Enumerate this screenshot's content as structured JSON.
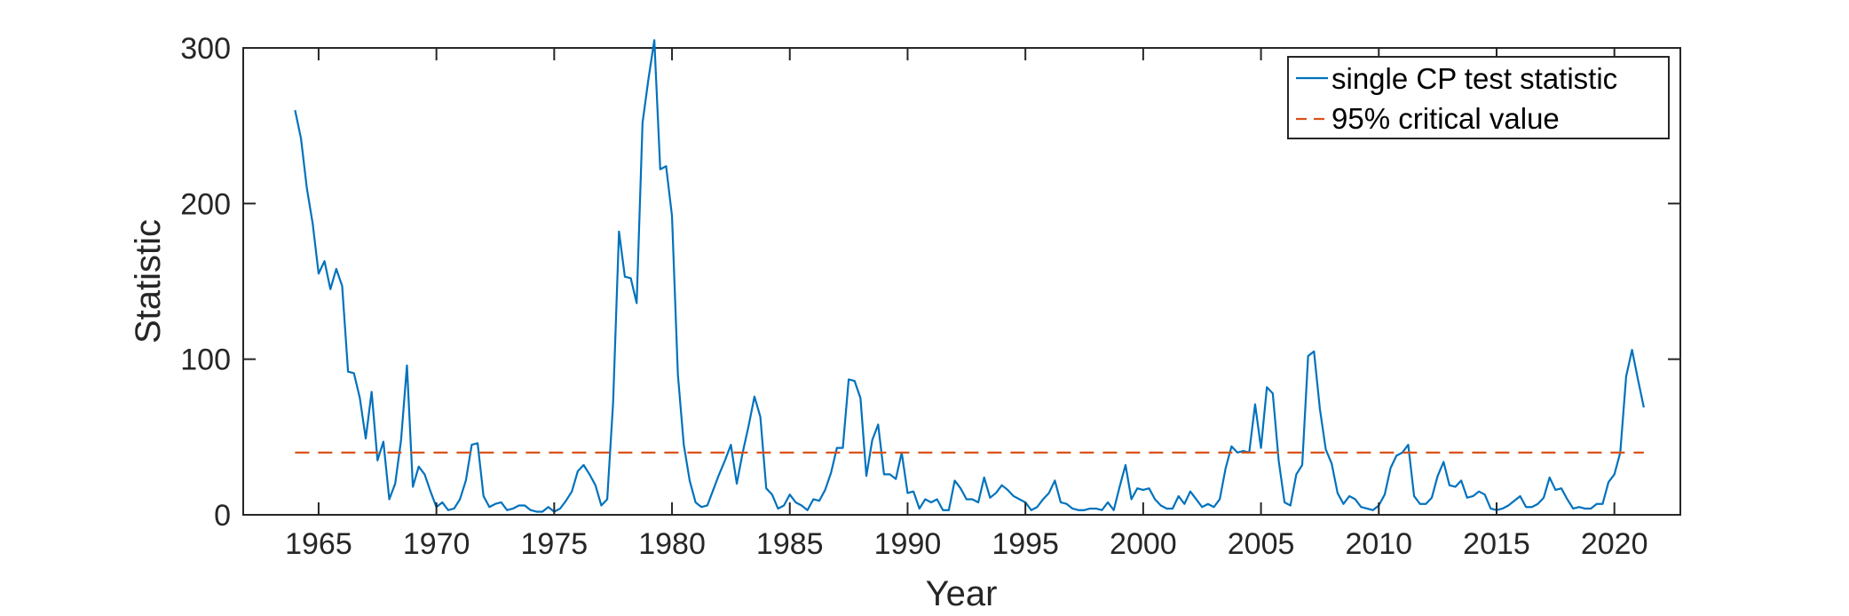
{
  "colors": {
    "series_line": "#0072BD",
    "critical_line": "#D95319",
    "axis": "#262626"
  },
  "chart_data": {
    "type": "line",
    "title": "",
    "xlabel": "Year",
    "ylabel": "Statistic",
    "xlim": [
      1961.8,
      2022.8
    ],
    "ylim": [
      0,
      300
    ],
    "x_ticks": [
      1965,
      1970,
      1975,
      1980,
      1985,
      1990,
      1995,
      2000,
      2005,
      2010,
      2015,
      2020
    ],
    "x_tick_labels": [
      "1965",
      "1970",
      "1975",
      "1980",
      "1985",
      "1990",
      "1995",
      "2000",
      "2005",
      "2010",
      "2015",
      "2020"
    ],
    "y_ticks": [
      0,
      100,
      200,
      300
    ],
    "y_tick_labels": [
      "0",
      "100",
      "200",
      "300"
    ],
    "grid": false,
    "legend_position": "top-right",
    "series": [
      {
        "name": "single CP test statistic",
        "style": "solid",
        "points": [
          [
            1964.0,
            260
          ],
          [
            1964.25,
            242
          ],
          [
            1964.5,
            210
          ],
          [
            1964.75,
            187
          ],
          [
            1965.0,
            155
          ],
          [
            1965.25,
            163
          ],
          [
            1965.5,
            145
          ],
          [
            1965.75,
            158
          ],
          [
            1966.0,
            147
          ],
          [
            1966.25,
            92
          ],
          [
            1966.5,
            91
          ],
          [
            1966.75,
            75
          ],
          [
            1967.0,
            49
          ],
          [
            1967.25,
            79
          ],
          [
            1967.5,
            35
          ],
          [
            1967.75,
            47
          ],
          [
            1968.0,
            10
          ],
          [
            1968.25,
            20
          ],
          [
            1968.5,
            48
          ],
          [
            1968.75,
            96
          ],
          [
            1969.0,
            18
          ],
          [
            1969.25,
            31
          ],
          [
            1969.5,
            26
          ],
          [
            1969.75,
            15
          ],
          [
            1970.0,
            5
          ],
          [
            1970.25,
            8
          ],
          [
            1970.5,
            3
          ],
          [
            1970.75,
            4
          ],
          [
            1971.0,
            10
          ],
          [
            1971.25,
            22
          ],
          [
            1971.5,
            45
          ],
          [
            1971.75,
            46
          ],
          [
            1972.0,
            12
          ],
          [
            1972.25,
            5
          ],
          [
            1972.5,
            7
          ],
          [
            1972.75,
            8
          ],
          [
            1973.0,
            3
          ],
          [
            1973.25,
            4
          ],
          [
            1973.5,
            6
          ],
          [
            1973.75,
            6
          ],
          [
            1974.0,
            3
          ],
          [
            1974.25,
            2
          ],
          [
            1974.5,
            2
          ],
          [
            1974.75,
            5
          ],
          [
            1975.0,
            2
          ],
          [
            1975.25,
            4
          ],
          [
            1975.5,
            9
          ],
          [
            1975.75,
            15
          ],
          [
            1976.0,
            28
          ],
          [
            1976.25,
            32
          ],
          [
            1976.5,
            26
          ],
          [
            1976.75,
            19
          ],
          [
            1977.0,
            6
          ],
          [
            1977.25,
            10
          ],
          [
            1977.5,
            72
          ],
          [
            1977.75,
            182
          ],
          [
            1978.0,
            153
          ],
          [
            1978.25,
            152
          ],
          [
            1978.5,
            136
          ],
          [
            1978.75,
            252
          ],
          [
            1979.0,
            280
          ],
          [
            1979.25,
            305
          ],
          [
            1979.5,
            222
          ],
          [
            1979.75,
            224
          ],
          [
            1980.0,
            192
          ],
          [
            1980.25,
            90
          ],
          [
            1980.5,
            45
          ],
          [
            1980.75,
            22
          ],
          [
            1981.0,
            8
          ],
          [
            1981.25,
            5
          ],
          [
            1981.5,
            6
          ],
          [
            1981.75,
            16
          ],
          [
            1982.0,
            26
          ],
          [
            1982.25,
            35
          ],
          [
            1982.5,
            45
          ],
          [
            1982.75,
            20
          ],
          [
            1983.0,
            40
          ],
          [
            1983.25,
            57
          ],
          [
            1983.5,
            76
          ],
          [
            1983.75,
            63
          ],
          [
            1984.0,
            17
          ],
          [
            1984.25,
            13
          ],
          [
            1984.5,
            4
          ],
          [
            1984.75,
            6
          ],
          [
            1985.0,
            13
          ],
          [
            1985.25,
            8
          ],
          [
            1985.5,
            6
          ],
          [
            1985.75,
            3
          ],
          [
            1986.0,
            10
          ],
          [
            1986.25,
            9
          ],
          [
            1986.5,
            16
          ],
          [
            1986.75,
            27
          ],
          [
            1987.0,
            43
          ],
          [
            1987.25,
            43
          ],
          [
            1987.5,
            87
          ],
          [
            1987.75,
            86
          ],
          [
            1988.0,
            75
          ],
          [
            1988.25,
            25
          ],
          [
            1988.5,
            48
          ],
          [
            1988.75,
            58
          ],
          [
            1989.0,
            26
          ],
          [
            1989.25,
            26
          ],
          [
            1989.5,
            23
          ],
          [
            1989.75,
            40
          ],
          [
            1990.0,
            14
          ],
          [
            1990.25,
            15
          ],
          [
            1990.5,
            4
          ],
          [
            1990.75,
            10
          ],
          [
            1991.0,
            8
          ],
          [
            1991.25,
            10
          ],
          [
            1991.5,
            3
          ],
          [
            1991.75,
            3
          ],
          [
            1992.0,
            22
          ],
          [
            1992.25,
            17
          ],
          [
            1992.5,
            10
          ],
          [
            1992.75,
            10
          ],
          [
            1993.0,
            8
          ],
          [
            1993.25,
            24
          ],
          [
            1993.5,
            11
          ],
          [
            1993.75,
            14
          ],
          [
            1994.0,
            19
          ],
          [
            1994.25,
            16
          ],
          [
            1994.5,
            12
          ],
          [
            1994.75,
            10
          ],
          [
            1995.0,
            8
          ],
          [
            1995.25,
            3
          ],
          [
            1995.5,
            5
          ],
          [
            1995.75,
            10
          ],
          [
            1996.0,
            14
          ],
          [
            1996.25,
            22
          ],
          [
            1996.5,
            8
          ],
          [
            1996.75,
            7
          ],
          [
            1997.0,
            4
          ],
          [
            1997.25,
            3
          ],
          [
            1997.5,
            3
          ],
          [
            1997.75,
            4
          ],
          [
            1998.0,
            4
          ],
          [
            1998.25,
            3
          ],
          [
            1998.5,
            8
          ],
          [
            1998.75,
            3
          ],
          [
            1999.0,
            18
          ],
          [
            1999.25,
            32
          ],
          [
            1999.5,
            10
          ],
          [
            1999.75,
            17
          ],
          [
            2000.0,
            16
          ],
          [
            2000.25,
            17
          ],
          [
            2000.5,
            10
          ],
          [
            2000.75,
            6
          ],
          [
            2001.0,
            4
          ],
          [
            2001.25,
            4
          ],
          [
            2001.5,
            12
          ],
          [
            2001.75,
            7
          ],
          [
            2002.0,
            15
          ],
          [
            2002.25,
            10
          ],
          [
            2002.5,
            5
          ],
          [
            2002.75,
            7
          ],
          [
            2003.0,
            5
          ],
          [
            2003.25,
            10
          ],
          [
            2003.5,
            30
          ],
          [
            2003.75,
            44
          ],
          [
            2004.0,
            40
          ],
          [
            2004.25,
            41
          ],
          [
            2004.5,
            40
          ],
          [
            2004.75,
            71
          ],
          [
            2005.0,
            43
          ],
          [
            2005.25,
            82
          ],
          [
            2005.5,
            78
          ],
          [
            2005.75,
            35
          ],
          [
            2006.0,
            8
          ],
          [
            2006.25,
            6
          ],
          [
            2006.5,
            26
          ],
          [
            2006.75,
            32
          ],
          [
            2007.0,
            102
          ],
          [
            2007.25,
            105
          ],
          [
            2007.5,
            68
          ],
          [
            2007.75,
            42
          ],
          [
            2008.0,
            33
          ],
          [
            2008.25,
            14
          ],
          [
            2008.5,
            7
          ],
          [
            2008.75,
            12
          ],
          [
            2009.0,
            10
          ],
          [
            2009.25,
            5
          ],
          [
            2009.5,
            4
          ],
          [
            2009.75,
            3
          ],
          [
            2010.0,
            6
          ],
          [
            2010.25,
            13
          ],
          [
            2010.5,
            30
          ],
          [
            2010.75,
            38
          ],
          [
            2011.0,
            40
          ],
          [
            2011.25,
            45
          ],
          [
            2011.5,
            12
          ],
          [
            2011.75,
            7
          ],
          [
            2012.0,
            7
          ],
          [
            2012.25,
            11
          ],
          [
            2012.5,
            25
          ],
          [
            2012.75,
            34
          ],
          [
            2013.0,
            19
          ],
          [
            2013.25,
            18
          ],
          [
            2013.5,
            22
          ],
          [
            2013.75,
            11
          ],
          [
            2014.0,
            12
          ],
          [
            2014.25,
            15
          ],
          [
            2014.5,
            13
          ],
          [
            2014.75,
            4
          ],
          [
            2015.0,
            3
          ],
          [
            2015.25,
            4
          ],
          [
            2015.5,
            6
          ],
          [
            2015.75,
            9
          ],
          [
            2016.0,
            12
          ],
          [
            2016.25,
            5
          ],
          [
            2016.5,
            5
          ],
          [
            2016.75,
            7
          ],
          [
            2017.0,
            11
          ],
          [
            2017.25,
            24
          ],
          [
            2017.5,
            16
          ],
          [
            2017.75,
            17
          ],
          [
            2018.0,
            10
          ],
          [
            2018.25,
            4
          ],
          [
            2018.5,
            5
          ],
          [
            2018.75,
            4
          ],
          [
            2019.0,
            4
          ],
          [
            2019.25,
            7
          ],
          [
            2019.5,
            7
          ],
          [
            2019.75,
            21
          ],
          [
            2020.0,
            26
          ],
          [
            2020.25,
            40
          ],
          [
            2020.5,
            89
          ],
          [
            2020.75,
            106
          ],
          [
            2021.0,
            87
          ],
          [
            2021.25,
            69
          ]
        ]
      },
      {
        "name": "95% critical value",
        "style": "dashed",
        "points": [
          [
            1964.0,
            40
          ],
          [
            2021.25,
            40
          ]
        ]
      }
    ]
  }
}
